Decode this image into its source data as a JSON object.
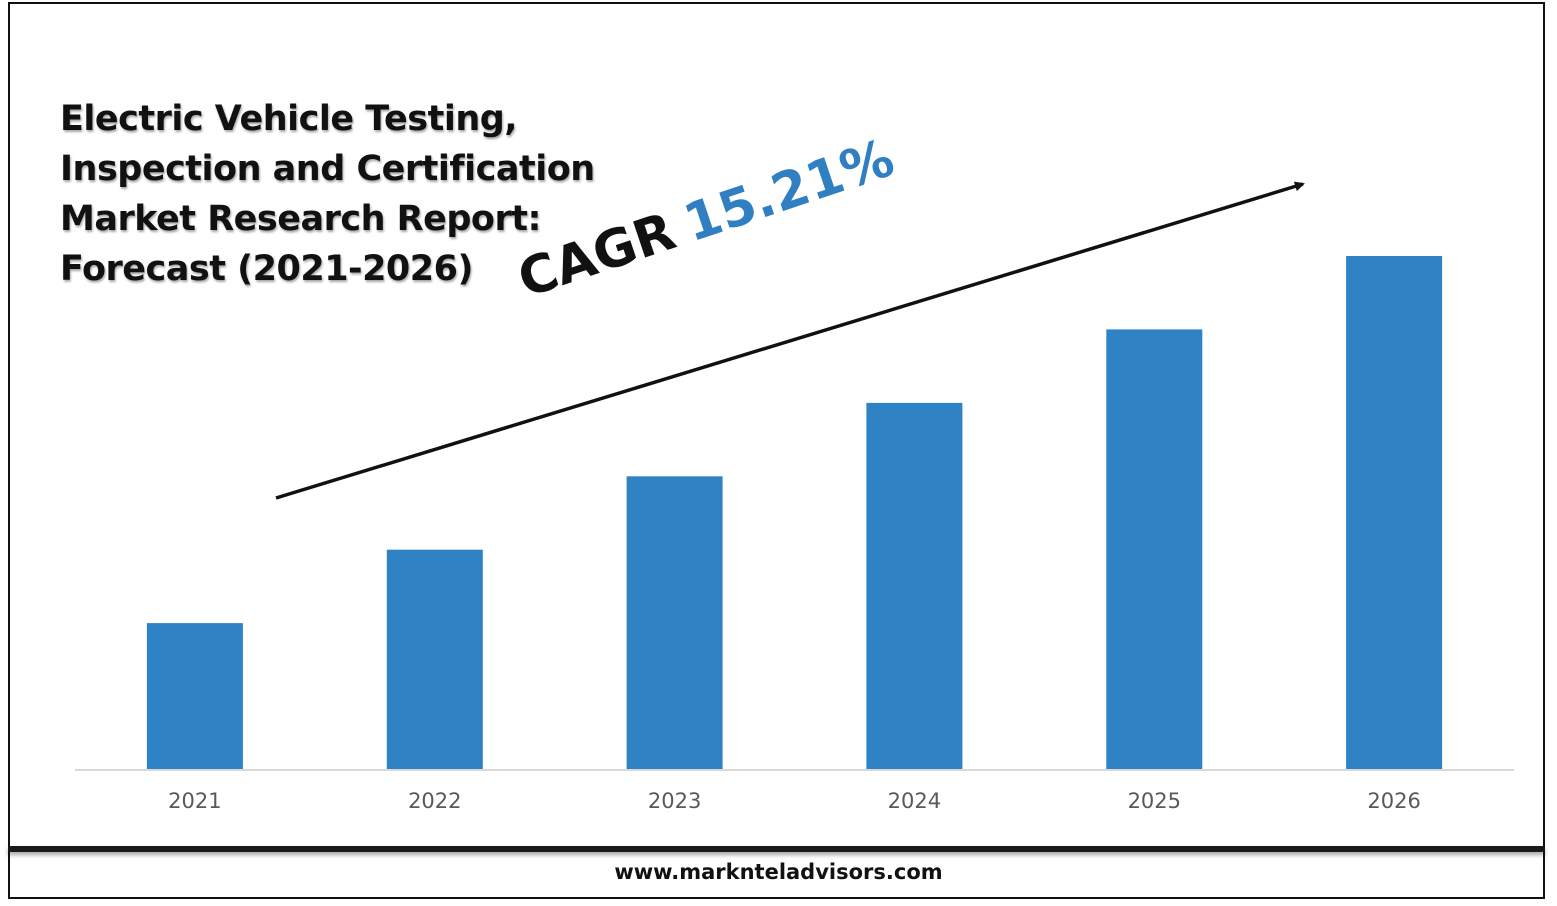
{
  "title_lines": [
    "Electric Vehicle Testing,",
    "Inspection and Certification",
    "Market Research Report:",
    "Forecast (2021-2026)"
  ],
  "cagr": {
    "label": "CAGR",
    "value": "15.21%"
  },
  "footer": {
    "url": "www.marknteladvisors.com"
  },
  "colors": {
    "bar": "#2f83c4",
    "cagr_value": "#2f7fc2",
    "text": "#111111",
    "tick": "#595959"
  },
  "chart_data": {
    "type": "bar",
    "title": "Electric Vehicle Testing, Inspection and Certification Market Research Report: Forecast (2021-2026)",
    "categories": [
      "2021",
      "2022",
      "2023",
      "2024",
      "2025",
      "2026"
    ],
    "values": [
      1.0,
      1.5,
      2.0,
      2.5,
      3.0,
      3.5
    ],
    "ylim": [
      0,
      3.5
    ],
    "y_axis_visible": false,
    "grid": false,
    "legend": "none",
    "annotation": "CAGR 15.21%"
  }
}
